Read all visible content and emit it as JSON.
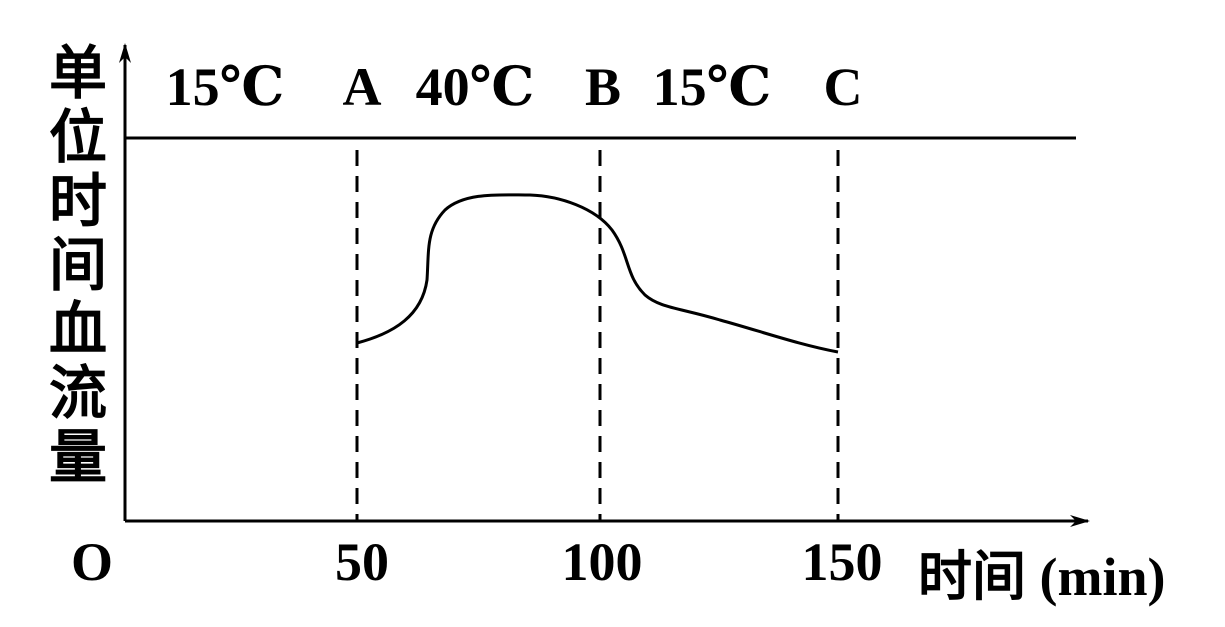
{
  "y_axis_label": "单位时间血流量",
  "top_labels": [
    "15℃",
    "A",
    "40℃",
    "B",
    "15℃",
    "C"
  ],
  "x_ticks": [
    "O",
    "50",
    "100",
    "150"
  ],
  "x_axis_label": "时间 (min)"
}
